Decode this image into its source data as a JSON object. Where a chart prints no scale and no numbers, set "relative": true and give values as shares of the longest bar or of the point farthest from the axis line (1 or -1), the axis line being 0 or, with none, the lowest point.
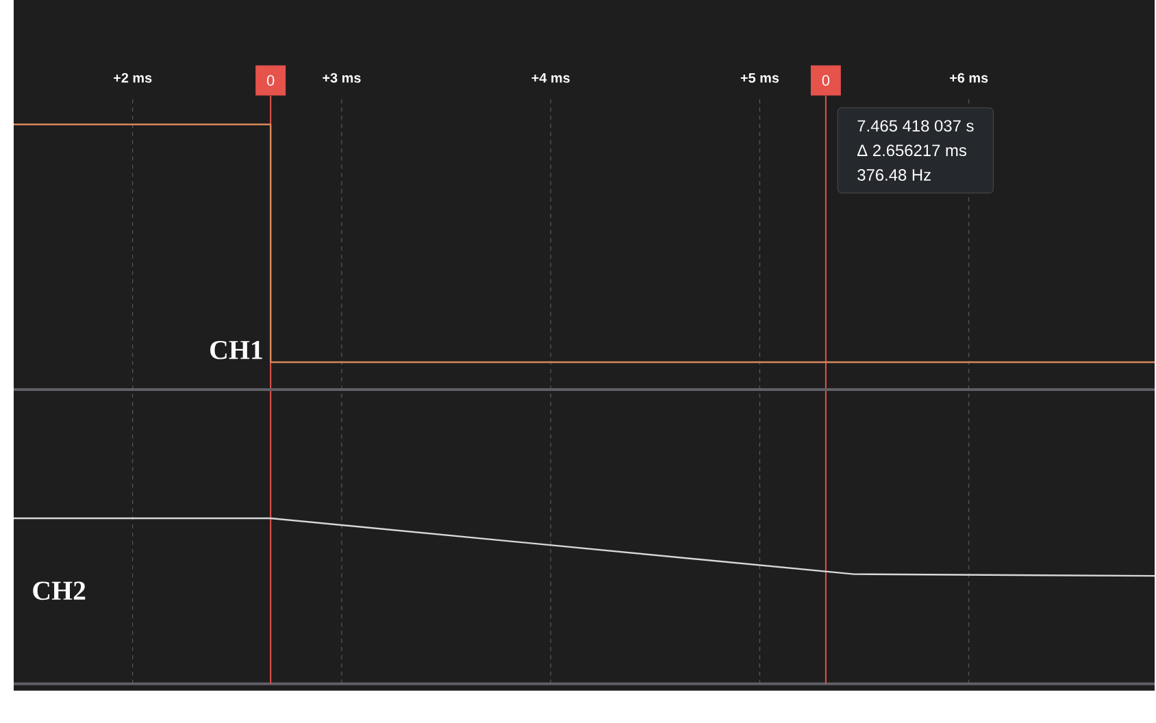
{
  "chart_data": {
    "type": "line",
    "relative": true,
    "xlim": [
      1.431,
      6.889
    ],
    "grid": "x",
    "xticks": [
      {
        "value": 2,
        "label": "+2 ms"
      },
      {
        "value": 3,
        "label": "+3 ms"
      },
      {
        "value": 4,
        "label": "+4 ms"
      },
      {
        "value": 5,
        "label": "+5 ms"
      },
      {
        "value": 6,
        "label": "+6 ms"
      }
    ],
    "series": [
      {
        "name": "CH1",
        "type": "step",
        "color": "#d9875a",
        "x": [
          1.431,
          2.66,
          6.889
        ],
        "values": [
          1,
          0.575,
          0.575
        ]
      },
      {
        "name": "CH2",
        "color": "#d8d8d8",
        "x": [
          1.431,
          2.66,
          5.451,
          6.889
        ],
        "values": [
          0.296,
          0.296,
          0.196,
          0.193
        ]
      }
    ],
    "ref_lines": [
      {
        "axis": "x",
        "value": 2.66,
        "color": "#e5534b"
      },
      {
        "axis": "x",
        "value": 5.316,
        "color": "#e5534b"
      },
      {
        "axis": "y",
        "value": 0.526,
        "color": "#5f5f66"
      }
    ],
    "annotations": [
      "0",
      "0",
      "7.465 418 037 s",
      "Δ 2.656217 ms",
      "376.48 Hz"
    ]
  }
}
